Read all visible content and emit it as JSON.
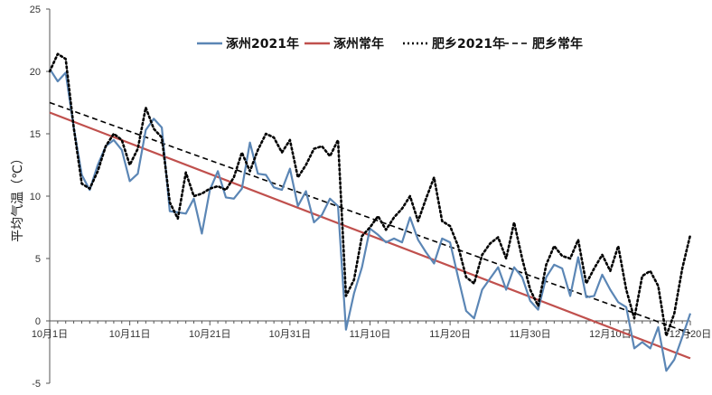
{
  "chart_data": {
    "type": "line",
    "title": "",
    "xlabel": "",
    "ylabel": "平均气温（℃）",
    "ylim": [
      -5,
      25
    ],
    "yticks": [
      -5,
      0,
      5,
      10,
      15,
      20,
      25
    ],
    "x_start": "10月1日",
    "x_end": "12月20日",
    "x_tick_labels": [
      "10月1日",
      "10月11日",
      "10月21日",
      "10月31日",
      "11月10日",
      "11月20日",
      "11月30日",
      "12月10日",
      "12月20日"
    ],
    "x_tick_days": [
      1,
      11,
      21,
      31,
      41,
      51,
      61,
      71,
      81
    ],
    "legend_position": "top-center",
    "grid": false,
    "series": [
      {
        "name": "涿州2021年",
        "style": "solid",
        "color": "#5b86b5",
        "values": [
          20.2,
          19.2,
          19.9,
          15.5,
          11.7,
          10.5,
          12.5,
          14.0,
          14.5,
          13.7,
          11.2,
          11.8,
          15.3,
          16.2,
          15.5,
          8.8,
          8.7,
          8.6,
          9.8,
          7.0,
          10.5,
          12.0,
          9.9,
          9.8,
          10.6,
          14.3,
          11.8,
          11.7,
          10.7,
          10.5,
          12.2,
          9.2,
          10.4,
          7.9,
          8.5,
          9.8,
          9.2,
          -0.7,
          2.2,
          4.3,
          7.4,
          6.9,
          6.3,
          6.6,
          6.3,
          8.3,
          6.5,
          5.5,
          4.6,
          6.6,
          6.3,
          3.5,
          0.8,
          0.2,
          2.5,
          3.4,
          4.3,
          2.5,
          4.3,
          3.5,
          1.6,
          0.9,
          3.5,
          4.5,
          4.2,
          2.0,
          5.1,
          1.9,
          2.0,
          3.7,
          2.5,
          1.5,
          1.1,
          -2.2,
          -1.7,
          -2.2,
          -0.5,
          -4.0,
          -3.1,
          -1.3,
          0.6
        ]
      },
      {
        "name": "涿州常年",
        "style": "solid",
        "color": "#c0504d",
        "start": 16.7,
        "end": -3.0
      },
      {
        "name": "肥乡2021年",
        "style": "dotted",
        "color": "#000000",
        "values": [
          20.0,
          21.4,
          21.0,
          15.5,
          11.0,
          10.6,
          12.0,
          14.0,
          15.0,
          14.5,
          12.5,
          13.8,
          17.1,
          15.4,
          14.7,
          9.5,
          8.2,
          11.9,
          10.0,
          10.2,
          10.6,
          10.8,
          10.5,
          11.5,
          13.5,
          12.0,
          13.7,
          15.0,
          14.7,
          13.5,
          14.5,
          11.5,
          12.5,
          13.8,
          14.0,
          13.2,
          14.5,
          2.0,
          3.3,
          6.8,
          7.5,
          8.4,
          7.3,
          8.3,
          9.0,
          10.0,
          8.0,
          9.8,
          11.5,
          8.0,
          7.6,
          6.0,
          3.5,
          3.0,
          5.3,
          6.2,
          6.7,
          5.0,
          7.9,
          5.0,
          2.5,
          1.2,
          4.5,
          6.0,
          5.2,
          5.0,
          6.5,
          3.0,
          4.2,
          5.3,
          4.0,
          6.0,
          2.5,
          0.2,
          3.6,
          4.0,
          2.8,
          -1.2,
          0.6,
          4.2,
          6.9
        ]
      },
      {
        "name": "肥乡常年",
        "style": "dashed",
        "color": "#000000",
        "start": 17.5,
        "end": -1.0
      }
    ]
  }
}
